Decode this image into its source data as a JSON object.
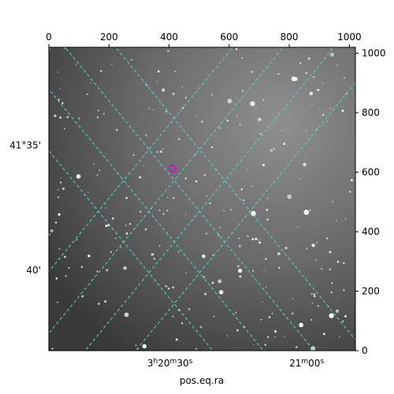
{
  "chart_data": {
    "type": "image",
    "xlabel": "pos.eq.ra",
    "ylabel": "",
    "pixel_axes": {
      "x": {
        "ticks": [
          0,
          200,
          400,
          600,
          800,
          1000
        ],
        "range": [
          0,
          1020
        ]
      },
      "y": {
        "ticks": [
          0,
          200,
          400,
          600,
          800,
          1000
        ],
        "range": [
          0,
          1020
        ]
      }
    },
    "world_axes": {
      "ra_ticks": [
        {
          "label_main": "3",
          "sup1": "h",
          "mid": "20",
          "sup2": "m",
          "end": "30",
          "sup3": "s",
          "x_pix": 450
        },
        {
          "label_main": "21",
          "sup1": "m",
          "mid": "00",
          "sup2": "s",
          "end": "",
          "sup3": "",
          "x_pix": 905
        }
      ],
      "dec_ticks": [
        {
          "label": "41°35'",
          "y_pix": 680
        },
        {
          "label": "40'",
          "y_pix": 260
        }
      ]
    },
    "grid": {
      "color": "#40e0d0",
      "style": "dashed"
    },
    "marker": {
      "x_pix": 412,
      "y_pix": 612,
      "color": "#dd00dd"
    }
  }
}
